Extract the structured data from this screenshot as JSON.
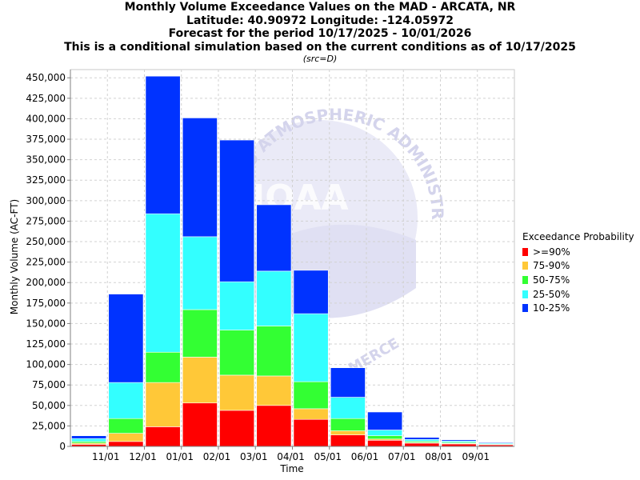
{
  "chart_data": {
    "type": "bar",
    "stacked": true,
    "title_lines": [
      "Monthly Volume Exceedance Values on the MAD - ARCATA, NR",
      "Latitude: 40.90972 Longitude: -124.05972",
      "Forecast for the period 10/17/2025 - 10/01/2026",
      "This is a conditional simulation based on the current conditions as of 10/17/2025"
    ],
    "subtitle": "(src=D)",
    "xlabel": "Time",
    "ylabel": "Monthly Volume (AC-FT)",
    "ylim": [
      0,
      460000
    ],
    "yticks": [
      0,
      25000,
      50000,
      75000,
      100000,
      125000,
      150000,
      175000,
      200000,
      225000,
      250000,
      275000,
      300000,
      325000,
      350000,
      375000,
      400000,
      425000,
      450000
    ],
    "ytick_labels": [
      "0",
      "25,000",
      "50,000",
      "75,000",
      "100,000",
      "125,000",
      "150,000",
      "175,000",
      "200,000",
      "225,000",
      "250,000",
      "275,000",
      "300,000",
      "325,000",
      "350,000",
      "375,000",
      "400,000",
      "425,000",
      "450,000"
    ],
    "xtick_labels": [
      "11/01",
      "12/01",
      "01/01",
      "02/01",
      "03/01",
      "04/01",
      "05/01",
      "06/01",
      "07/01",
      "08/01",
      "09/01"
    ],
    "categories": [
      "Oct 2025",
      "Nov 2025",
      "Dec 2025",
      "Jan 2026",
      "Feb 2026",
      "Mar 2026",
      "Apr 2026",
      "May 2026",
      "Jun 2026",
      "Jul 2026",
      "Aug 2026",
      "Sep 2026"
    ],
    "grid": true,
    "legend_title": "Exceedance Probability",
    "legend_position": "right",
    "series": [
      {
        "name": ">=90%",
        "color": "#ff0000",
        "values": [
          2500,
          6000,
          24000,
          53000,
          44000,
          50000,
          33000,
          14000,
          7500,
          4000,
          3000,
          2000
        ]
      },
      {
        "name": "75-90%",
        "color": "#ffc838",
        "values": [
          1500,
          10000,
          54000,
          56000,
          43000,
          36000,
          13000,
          5000,
          1500,
          800,
          700,
          500
        ]
      },
      {
        "name": "50-75%",
        "color": "#33ff33",
        "values": [
          2000,
          18000,
          37000,
          58000,
          55000,
          61000,
          33000,
          15000,
          4000,
          1500,
          1200,
          700
        ]
      },
      {
        "name": "25-50%",
        "color": "#33ffff",
        "values": [
          3500,
          44000,
          169000,
          89000,
          59000,
          67000,
          83000,
          26000,
          7000,
          2200,
          1600,
          1000
        ]
      },
      {
        "name": "10-25%",
        "color": "#0033ff",
        "values": [
          3500,
          108000,
          168000,
          145000,
          173000,
          81000,
          53000,
          36000,
          22000,
          2500,
          1500,
          900
        ]
      }
    ]
  },
  "watermark": {
    "text_top": "AND ATMOSPHERIC ADMINISTRATION",
    "text_center": "NOAA",
    "text_bottom": "MERCE"
  }
}
